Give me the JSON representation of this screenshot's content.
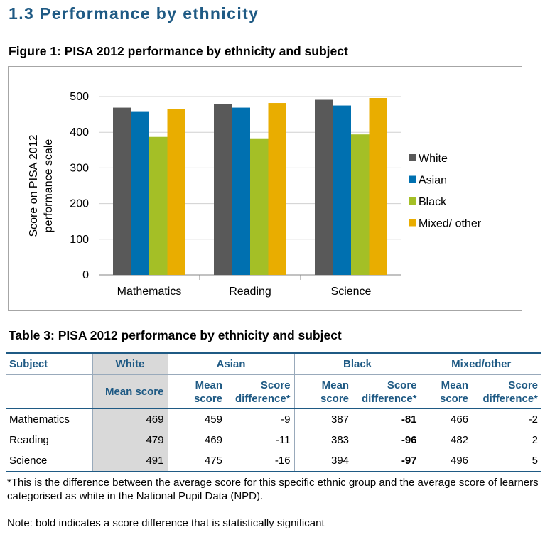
{
  "section_title": "1.3 Performance by ethnicity",
  "figure_title": "Figure 1: PISA 2012 performance by ethnicity and subject",
  "chart_data": {
    "type": "bar",
    "categories": [
      "Mathematics",
      "Reading",
      "Science"
    ],
    "series": [
      {
        "name": "White",
        "color": "#595959",
        "values": [
          469,
          479,
          491
        ]
      },
      {
        "name": "Asian",
        "color": "#0070b0",
        "values": [
          459,
          469,
          475
        ]
      },
      {
        "name": "Black",
        "color": "#a4bf26",
        "values": [
          387,
          383,
          394
        ]
      },
      {
        "name": "Mixed/ other",
        "color": "#e9ad00",
        "values": [
          466,
          482,
          496
        ]
      }
    ],
    "ylabel": "Score on PISA 2012 performance scale",
    "ylabel_lines": [
      "Score on PISA 2012",
      "performance scale"
    ],
    "ylim": [
      0,
      500
    ],
    "yticks": [
      0,
      100,
      200,
      300,
      400,
      500
    ],
    "grid": true,
    "legend": "right"
  },
  "table_title": "Table 3: PISA 2012 performance by ethnicity and subject",
  "table": {
    "header": {
      "subject": "Subject",
      "groups": [
        "White",
        "Asian",
        "Black",
        "Mixed/other"
      ]
    },
    "sub": {
      "mean_score": "Mean score",
      "mean_l1": "Mean",
      "mean_l2": "score",
      "diff_l1": "Score",
      "diff_l2": "difference*"
    },
    "rows": [
      {
        "subject": "Mathematics",
        "white": "469",
        "asian": "459",
        "asian_diff": "-9",
        "black": "387",
        "black_diff": "-81",
        "mixed": "466",
        "mixed_diff": "-2"
      },
      {
        "subject": "Reading",
        "white": "479",
        "asian": "469",
        "asian_diff": "-11",
        "black": "383",
        "black_diff": "-96",
        "mixed": "482",
        "mixed_diff": "2"
      },
      {
        "subject": "Science",
        "white": "491",
        "asian": "475",
        "asian_diff": "-16",
        "black": "394",
        "black_diff": "-97",
        "mixed": "496",
        "mixed_diff": "5"
      }
    ]
  },
  "footnote": "*This is the difference between the average score for this specific ethnic group and the average score of learners categorised as white in the National Pupil Data (NPD).",
  "note": "Note: bold indicates a score difference that is statistically significant"
}
